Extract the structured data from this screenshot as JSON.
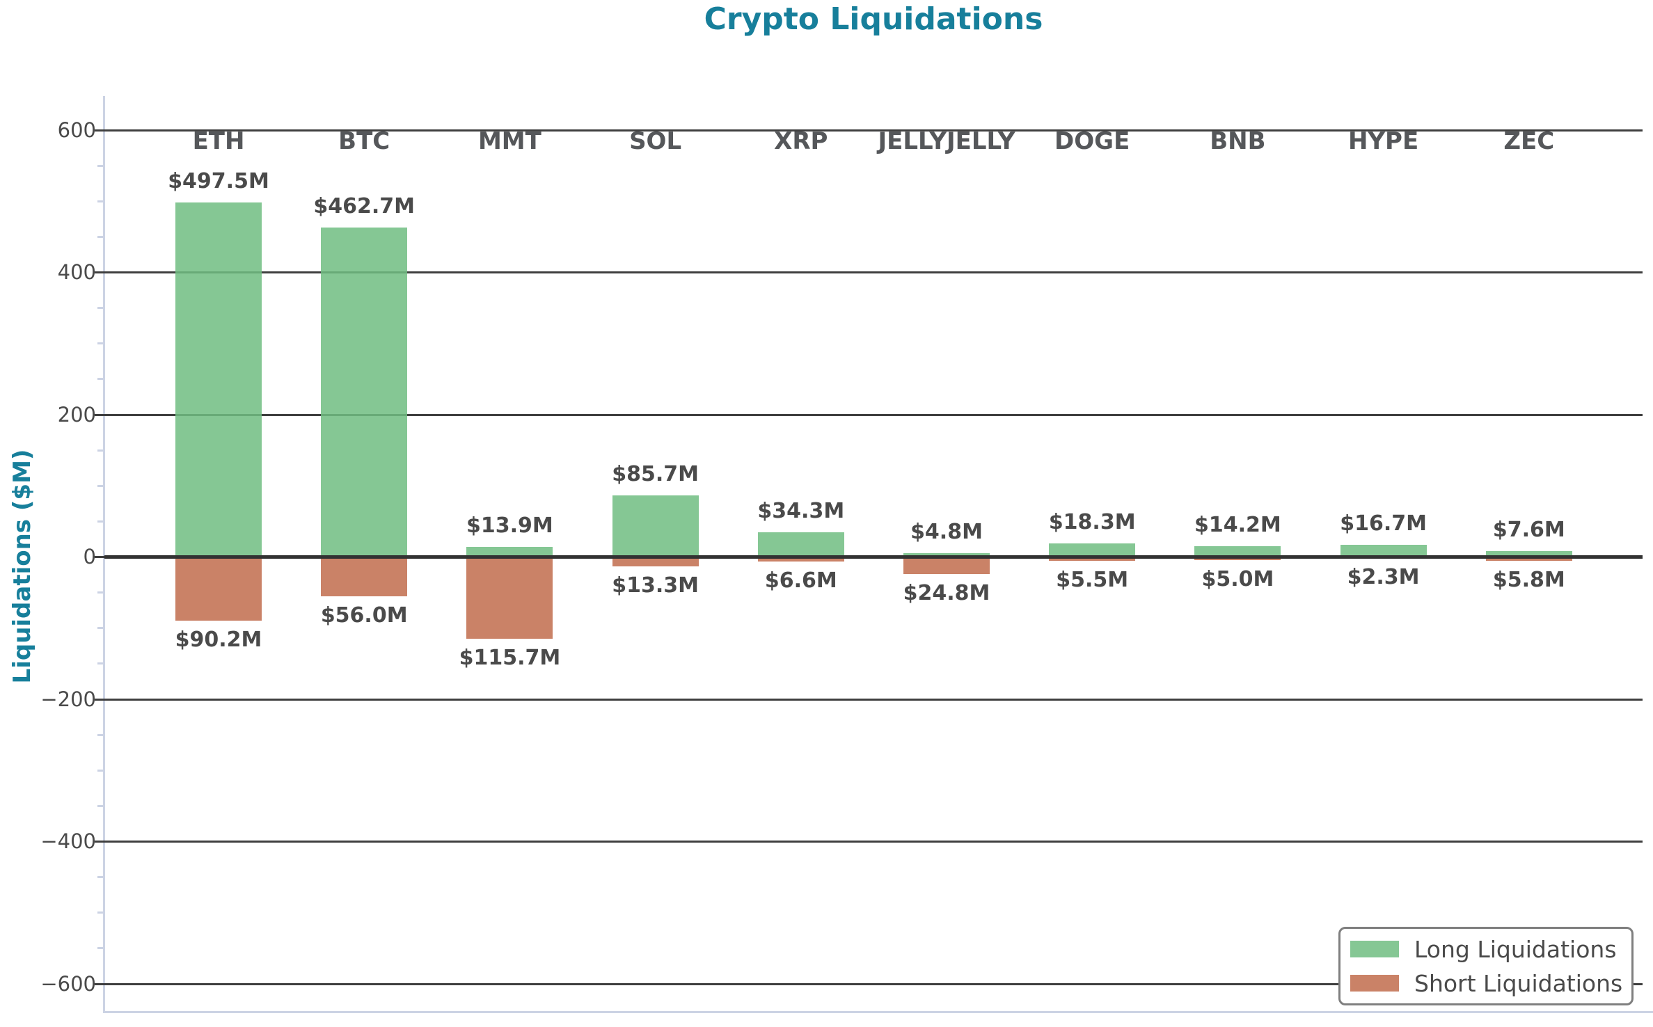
{
  "title": "Crypto Liquidations",
  "ylabel": "Liquidations ($M)",
  "legend": {
    "long_label": "Long Liquidations",
    "short_label": "Short Liquidations"
  },
  "colors": {
    "long_bar": "#85c794",
    "short_bar": "#ca8267",
    "title_teal": "#177f9b",
    "grid": "#3f3f3f",
    "tick_text": "#4a4a4a",
    "spine": "#ccd3e4"
  },
  "chart_data": {
    "type": "bar",
    "title": "Crypto Liquidations",
    "ylabel": "Liquidations ($M)",
    "categories": [
      "ETH",
      "BTC",
      "MMT",
      "SOL",
      "XRP",
      "JELLYJELLY",
      "DOGE",
      "BNB",
      "HYPE",
      "ZEC"
    ],
    "series": [
      {
        "name": "Long Liquidations",
        "direction": "up",
        "values": [
          497.5,
          462.7,
          13.9,
          85.7,
          34.3,
          4.8,
          18.3,
          14.2,
          16.7,
          7.6
        ],
        "value_labels": [
          "$497.5M",
          "$462.7M",
          "$13.9M",
          "$85.7M",
          "$34.3M",
          "$4.8M",
          "$18.3M",
          "$14.2M",
          "$16.7M",
          "$7.6M"
        ]
      },
      {
        "name": "Short Liquidations",
        "direction": "down",
        "values": [
          90.2,
          56.0,
          115.7,
          13.3,
          6.6,
          24.8,
          5.5,
          5.0,
          2.3,
          5.8
        ],
        "value_labels": [
          "$90.2M",
          "$56.0M",
          "$115.7M",
          "$13.3M",
          "$6.6M",
          "$24.8M",
          "$5.5M",
          "$5.0M",
          "$2.3M",
          "$5.8M"
        ]
      }
    ],
    "ytick_values": [
      600,
      400,
      200,
      0,
      -200,
      -400,
      -600
    ],
    "ytick_labels": [
      "600",
      "400",
      "200",
      "0",
      "−200",
      "−400",
      "−600"
    ],
    "minor_tick_step": 50,
    "ylim": [
      -645,
      648
    ],
    "grid": true,
    "legend_position": "lower right"
  }
}
